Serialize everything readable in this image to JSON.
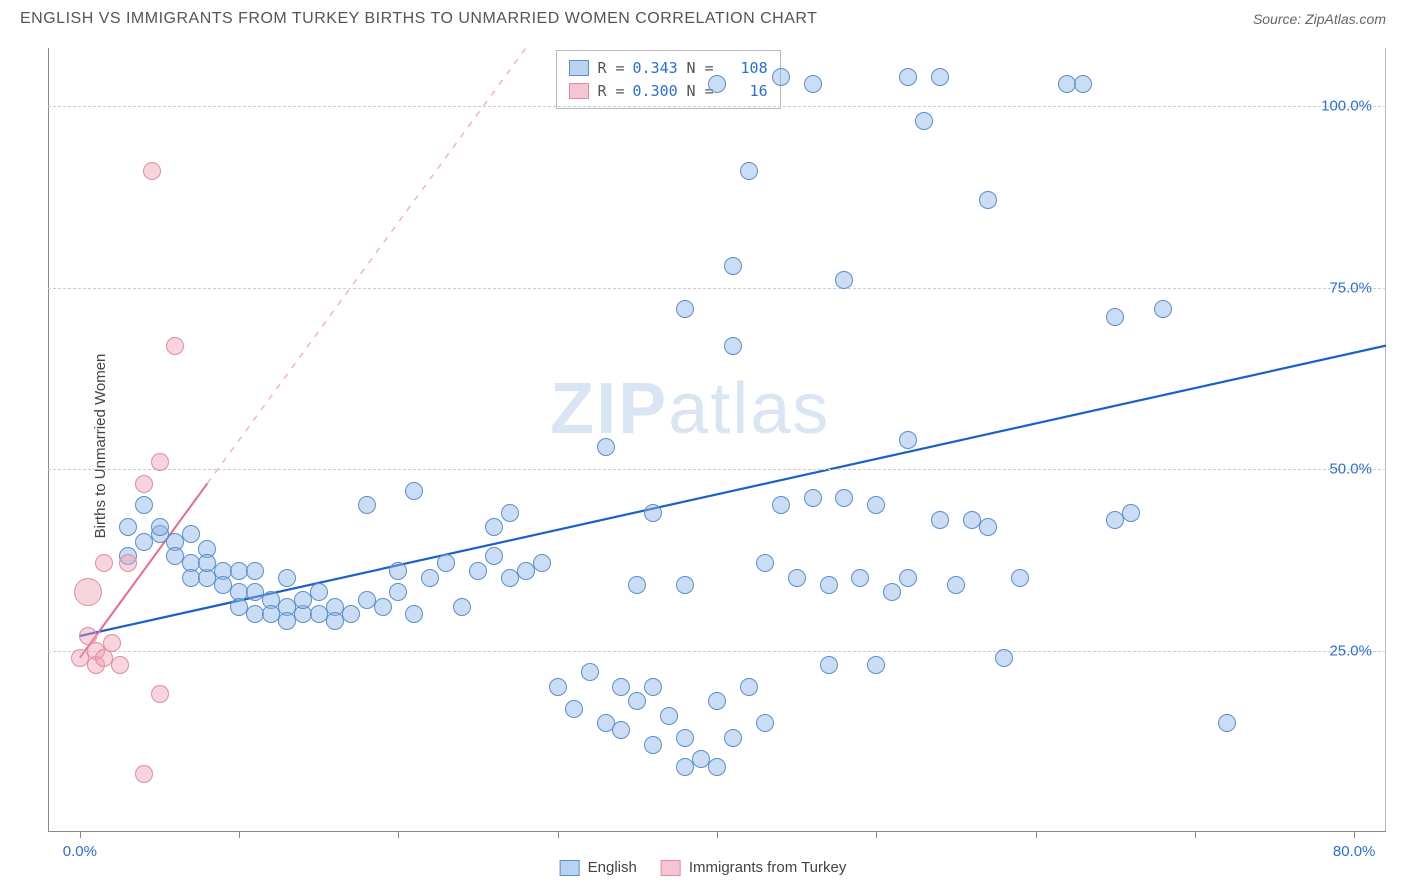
{
  "header": {
    "title": "ENGLISH VS IMMIGRANTS FROM TURKEY BIRTHS TO UNMARRIED WOMEN CORRELATION CHART",
    "source_prefix": "Source: ",
    "source_name": "ZipAtlas.com"
  },
  "watermark": {
    "bold": "ZIP",
    "rest": "atlas"
  },
  "chart": {
    "type": "scatter",
    "ylabel": "Births to Unmarried Women",
    "xlim": [
      -2,
      82
    ],
    "ylim": [
      0,
      108
    ],
    "x_axis_labels": [
      {
        "value": 0,
        "label": "0.0%"
      },
      {
        "value": 80,
        "label": "80.0%"
      }
    ],
    "x_tick_positions": [
      0,
      10,
      20,
      30,
      40,
      50,
      60,
      70,
      80
    ],
    "y_gridlines": [
      {
        "value": 25,
        "label": "25.0%"
      },
      {
        "value": 50,
        "label": "50.0%"
      },
      {
        "value": 75,
        "label": "75.0%"
      },
      {
        "value": 100,
        "label": "100.0%"
      }
    ],
    "grid_color": "#cccccc",
    "background_color": "#ffffff",
    "axis_color": "#888888",
    "label_color": "#2a6fd6",
    "ylabel_fontsize": 15,
    "tick_fontsize": 15,
    "marker_radius": 9,
    "marker_stroke_width": 1.2,
    "series": [
      {
        "name": "English",
        "fill_color": "rgba(138,180,230,0.45)",
        "stroke_color": "#5a8fce",
        "swatch_fill": "#b9d2f0",
        "swatch_border": "#5a8fce",
        "trend": {
          "x1": 0,
          "y1": 27,
          "x2": 82,
          "y2": 67,
          "solid_color": "#1b5fc9",
          "solid_width": 2.2,
          "dash_color": "#1b5fc9"
        },
        "R": "0.343",
        "N": "108",
        "points": [
          {
            "x": 4,
            "y": 45
          },
          {
            "x": 4,
            "y": 40
          },
          {
            "x": 5,
            "y": 41
          },
          {
            "x": 5,
            "y": 42
          },
          {
            "x": 3,
            "y": 38
          },
          {
            "x": 3,
            "y": 42
          },
          {
            "x": 6,
            "y": 40
          },
          {
            "x": 6,
            "y": 38
          },
          {
            "x": 7,
            "y": 41
          },
          {
            "x": 7,
            "y": 37
          },
          {
            "x": 7,
            "y": 35
          },
          {
            "x": 8,
            "y": 39
          },
          {
            "x": 8,
            "y": 35
          },
          {
            "x": 8,
            "y": 37
          },
          {
            "x": 9,
            "y": 36
          },
          {
            "x": 9,
            "y": 34
          },
          {
            "x": 10,
            "y": 36
          },
          {
            "x": 10,
            "y": 33
          },
          {
            "x": 10,
            "y": 31
          },
          {
            "x": 11,
            "y": 36
          },
          {
            "x": 11,
            "y": 33
          },
          {
            "x": 11,
            "y": 30
          },
          {
            "x": 12,
            "y": 32
          },
          {
            "x": 12,
            "y": 30
          },
          {
            "x": 13,
            "y": 35
          },
          {
            "x": 13,
            "y": 31
          },
          {
            "x": 13,
            "y": 29
          },
          {
            "x": 14,
            "y": 30
          },
          {
            "x": 14,
            "y": 32
          },
          {
            "x": 15,
            "y": 30
          },
          {
            "x": 15,
            "y": 33
          },
          {
            "x": 16,
            "y": 31
          },
          {
            "x": 16,
            "y": 29
          },
          {
            "x": 17,
            "y": 30
          },
          {
            "x": 18,
            "y": 32
          },
          {
            "x": 19,
            "y": 31
          },
          {
            "x": 20,
            "y": 36
          },
          {
            "x": 20,
            "y": 33
          },
          {
            "x": 21,
            "y": 30
          },
          {
            "x": 22,
            "y": 35
          },
          {
            "x": 23,
            "y": 37
          },
          {
            "x": 24,
            "y": 31
          },
          {
            "x": 25,
            "y": 36
          },
          {
            "x": 26,
            "y": 38
          },
          {
            "x": 27,
            "y": 35
          },
          {
            "x": 28,
            "y": 36
          },
          {
            "x": 29,
            "y": 37
          },
          {
            "x": 18,
            "y": 45
          },
          {
            "x": 21,
            "y": 47
          },
          {
            "x": 26,
            "y": 42
          },
          {
            "x": 27,
            "y": 44
          },
          {
            "x": 30,
            "y": 20
          },
          {
            "x": 31,
            "y": 17
          },
          {
            "x": 32,
            "y": 22
          },
          {
            "x": 33,
            "y": 15
          },
          {
            "x": 34,
            "y": 20
          },
          {
            "x": 34,
            "y": 14
          },
          {
            "x": 35,
            "y": 18
          },
          {
            "x": 36,
            "y": 12
          },
          {
            "x": 36,
            "y": 20
          },
          {
            "x": 37,
            "y": 16
          },
          {
            "x": 38,
            "y": 13
          },
          {
            "x": 38,
            "y": 9
          },
          {
            "x": 39,
            "y": 10
          },
          {
            "x": 40,
            "y": 18
          },
          {
            "x": 40,
            "y": 9
          },
          {
            "x": 41,
            "y": 13
          },
          {
            "x": 42,
            "y": 20
          },
          {
            "x": 43,
            "y": 15
          },
          {
            "x": 33,
            "y": 53
          },
          {
            "x": 35,
            "y": 34
          },
          {
            "x": 36,
            "y": 44
          },
          {
            "x": 38,
            "y": 34
          },
          {
            "x": 38,
            "y": 72
          },
          {
            "x": 40,
            "y": 103
          },
          {
            "x": 41,
            "y": 67
          },
          {
            "x": 42,
            "y": 91
          },
          {
            "x": 41,
            "y": 78
          },
          {
            "x": 43,
            "y": 37
          },
          {
            "x": 44,
            "y": 104
          },
          {
            "x": 44,
            "y": 45
          },
          {
            "x": 45,
            "y": 35
          },
          {
            "x": 46,
            "y": 46
          },
          {
            "x": 46,
            "y": 103
          },
          {
            "x": 47,
            "y": 23
          },
          {
            "x": 47,
            "y": 34
          },
          {
            "x": 48,
            "y": 46
          },
          {
            "x": 48,
            "y": 76
          },
          {
            "x": 49,
            "y": 35
          },
          {
            "x": 50,
            "y": 45
          },
          {
            "x": 50,
            "y": 23
          },
          {
            "x": 51,
            "y": 33
          },
          {
            "x": 52,
            "y": 35
          },
          {
            "x": 52,
            "y": 54
          },
          {
            "x": 52,
            "y": 104
          },
          {
            "x": 53,
            "y": 98
          },
          {
            "x": 54,
            "y": 43
          },
          {
            "x": 54,
            "y": 104
          },
          {
            "x": 55,
            "y": 34
          },
          {
            "x": 56,
            "y": 43
          },
          {
            "x": 57,
            "y": 87
          },
          {
            "x": 57,
            "y": 42
          },
          {
            "x": 58,
            "y": 24
          },
          {
            "x": 59,
            "y": 35
          },
          {
            "x": 62,
            "y": 103
          },
          {
            "x": 63,
            "y": 103
          },
          {
            "x": 65,
            "y": 43
          },
          {
            "x": 65,
            "y": 71
          },
          {
            "x": 66,
            "y": 44
          },
          {
            "x": 68,
            "y": 72
          },
          {
            "x": 72,
            "y": 15
          }
        ]
      },
      {
        "name": "Immigrants from Turkey",
        "fill_color": "rgba(240,160,180,0.45)",
        "stroke_color": "#e08ba3",
        "swatch_fill": "#f6c5d2",
        "swatch_border": "#e08ba3",
        "trend": {
          "x1": 0,
          "y1": 24,
          "x2": 28,
          "y2": 108,
          "solid_until_x": 8,
          "solid_color": "#e36b8f",
          "solid_width": 2,
          "dash_color": "rgba(227,107,143,0.55)"
        },
        "R": "0.300",
        "N": "16",
        "points": [
          {
            "x": 0,
            "y": 24
          },
          {
            "x": 0.5,
            "y": 27
          },
          {
            "x": 0.5,
            "y": 33,
            "r": 14
          },
          {
            "x": 1,
            "y": 25
          },
          {
            "x": 1,
            "y": 23
          },
          {
            "x": 1.5,
            "y": 24
          },
          {
            "x": 1.5,
            "y": 37
          },
          {
            "x": 2,
            "y": 26
          },
          {
            "x": 2.5,
            "y": 23
          },
          {
            "x": 3,
            "y": 37
          },
          {
            "x": 4,
            "y": 48
          },
          {
            "x": 5,
            "y": 51
          },
          {
            "x": 5,
            "y": 19
          },
          {
            "x": 6,
            "y": 67
          },
          {
            "x": 4.5,
            "y": 91
          },
          {
            "x": 4,
            "y": 8
          }
        ]
      }
    ],
    "stats_box_labels": {
      "R": "R =",
      "N": "N ="
    },
    "bottom_legend": [
      {
        "label": "English",
        "series_index": 0
      },
      {
        "label": "Immigrants from Turkey",
        "series_index": 1
      }
    ]
  }
}
